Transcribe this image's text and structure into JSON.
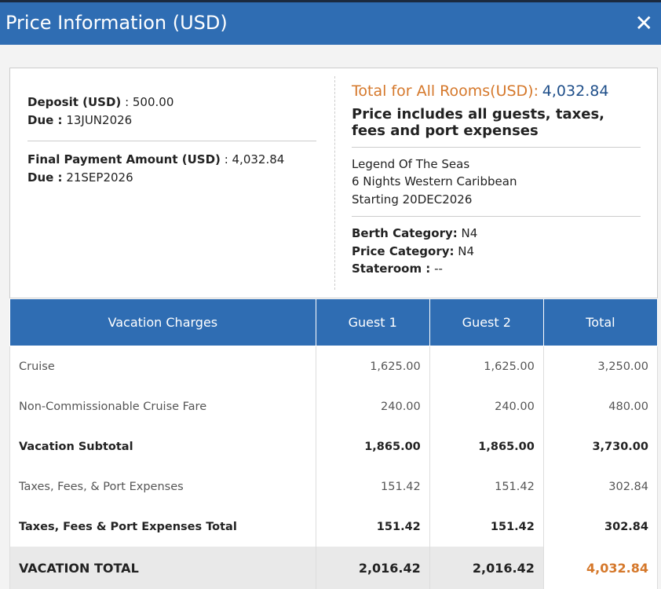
{
  "header": {
    "title": "Price Information (USD)",
    "close": "✕"
  },
  "payment": {
    "deposit": {
      "label": "Deposit (USD)",
      "value": ": 500.00"
    },
    "deposit_due": {
      "label": "Due :",
      "value": "13JUN2026"
    },
    "final": {
      "label": "Final Payment Amount (USD)",
      "value": ": 4,032.84"
    },
    "final_due": {
      "label": "Due :",
      "value": "21SEP2026"
    }
  },
  "summary": {
    "total_label": "Total for All Rooms(USD):",
    "total_value": "4,032.84",
    "includes": "Price includes all guests, taxes, fees and port expenses",
    "ship": [
      "Legend Of The Seas",
      "6 Nights Western Caribbean",
      "Starting 20DEC2026"
    ],
    "categories": [
      {
        "label": "Berth Category:",
        "value": "N4"
      },
      {
        "label": "Price Category:",
        "value": "N4"
      },
      {
        "label": "Stateroom :",
        "value": "--"
      }
    ]
  },
  "table": {
    "columns": [
      "Vacation Charges",
      "Guest 1",
      "Guest 2",
      "Total"
    ],
    "rows": [
      [
        "Cruise",
        "1,625.00",
        "1,625.00",
        "3,250.00"
      ],
      [
        "Non-Commissionable Cruise Fare",
        "240.00",
        "240.00",
        "480.00"
      ],
      [
        "Vacation Subtotal",
        "1,865.00",
        "1,865.00",
        "3,730.00"
      ],
      [
        "Taxes, Fees, & Port Expenses",
        "151.42",
        "151.42",
        "302.84"
      ],
      [
        "Taxes, Fees & Port Expenses Total",
        "151.42",
        "151.42",
        "302.84"
      ],
      [
        "VACATION TOTAL",
        "2,016.42",
        "2,016.42",
        "4,032.84"
      ]
    ]
  }
}
